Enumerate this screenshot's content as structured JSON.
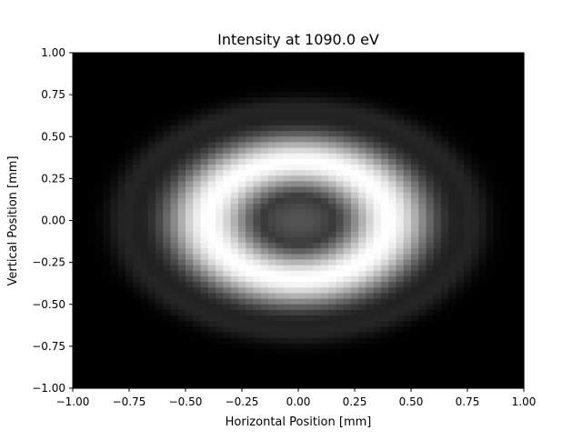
{
  "chart_data": {
    "type": "heatmap",
    "title": "Intensity at 1090.0 eV",
    "xlabel": "Horizontal Position [mm]",
    "ylabel": "Vertical Position [mm]",
    "xlim": [
      -1.0,
      1.0
    ],
    "ylim": [
      -1.0,
      1.0
    ],
    "xticks": [
      -1.0,
      -0.75,
      -0.5,
      -0.25,
      0.0,
      0.25,
      0.5,
      0.75,
      1.0
    ],
    "xtick_labels": [
      "−1.00",
      "−0.75",
      "−0.50",
      "−0.25",
      "0.00",
      "0.25",
      "0.50",
      "0.75",
      "1.00"
    ],
    "yticks": [
      -1.0,
      -0.75,
      -0.5,
      -0.25,
      0.0,
      0.25,
      0.5,
      0.75,
      1.0
    ],
    "ytick_labels": [
      "−1.00",
      "−0.75",
      "−0.50",
      "−0.25",
      "0.00",
      "0.25",
      "0.50",
      "0.75",
      "1.00"
    ],
    "colormap": "gray",
    "grid": false,
    "pattern": {
      "description": "elliptical ring of high intensity with darker center",
      "center": [
        0.0,
        0.0
      ],
      "ring_radius_x_mm": 0.4,
      "ring_radius_y_mm": 0.35,
      "ring_peak_intensity": 1.0,
      "center_intensity": 0.33,
      "outer_fringe_radius_mm": 0.78,
      "outer_fringe_intensity": 0.12
    },
    "grid_resolution": [
      60,
      60
    ]
  }
}
